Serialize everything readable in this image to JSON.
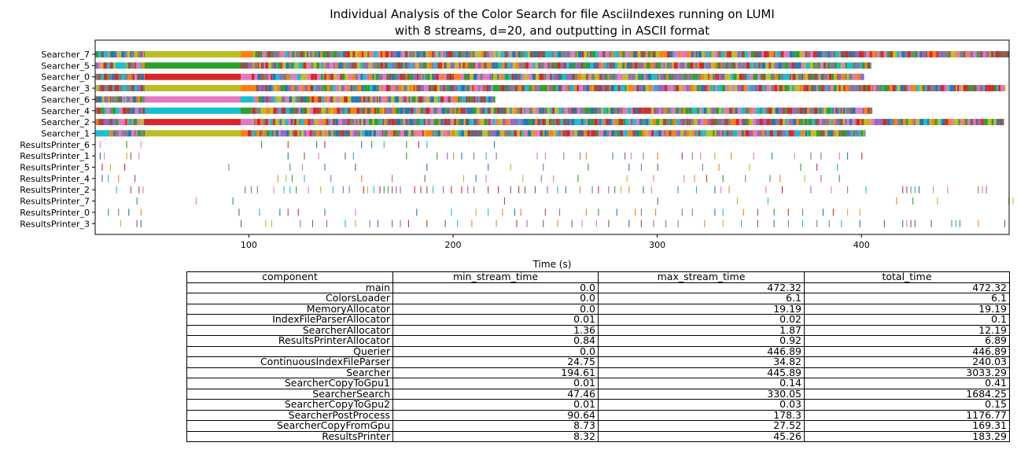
{
  "chart_data": {
    "type": "timeline",
    "title_lines": [
      "Individual Analysis of the Color Search for file AsciiIndexes running on LUMI",
      "with 8 streams, d=20, and outputting in ASCII format"
    ],
    "xlabel": "Time (s)",
    "xlim": [
      24.75,
      472.32
    ],
    "xticks": [
      100,
      200,
      300,
      400
    ],
    "palette": [
      "#1f77b4",
      "#ff7f0e",
      "#2ca02c",
      "#d62728",
      "#9467bd",
      "#8c564b",
      "#e377c2",
      "#7f7f7f",
      "#bcbd22",
      "#17becf"
    ],
    "rows": [
      {
        "name": "Searcher_7",
        "kind": "searcher",
        "start": 25,
        "end": 472.3,
        "long_block": [
          49,
          96,
          8
        ]
      },
      {
        "name": "Searcher_5",
        "kind": "searcher",
        "start": 25,
        "end": 404.8,
        "long_block": [
          49,
          96,
          2
        ]
      },
      {
        "name": "Searcher_0",
        "kind": "searcher",
        "start": 25,
        "end": 401.3,
        "long_block": [
          49,
          96,
          3
        ]
      },
      {
        "name": "Searcher_3",
        "kind": "searcher",
        "start": 25,
        "end": 470.5,
        "long_block": [
          49,
          96,
          8
        ]
      },
      {
        "name": "Searcher_6",
        "kind": "searcher",
        "start": 25,
        "end": 220.7,
        "long_block": [
          49,
          96,
          6
        ]
      },
      {
        "name": "Searcher_4",
        "kind": "searcher",
        "start": 25,
        "end": 405.2,
        "long_block": [
          49,
          96,
          9
        ]
      },
      {
        "name": "Searcher_2",
        "kind": "searcher",
        "start": 25,
        "end": 469.8,
        "long_block": [
          49,
          96,
          3
        ]
      },
      {
        "name": "Searcher_1",
        "kind": "searcher",
        "start": 25,
        "end": 402.0,
        "long_block": [
          49,
          96,
          8
        ]
      },
      {
        "name": "ResultsPrinter_6",
        "kind": "printer",
        "ticks": [
          27,
          40,
          47,
          106,
          119,
          133,
          137,
          155,
          160,
          166,
          177,
          183,
          187,
          220
        ]
      },
      {
        "name": "ResultsPrinter_1",
        "kind": "printer",
        "ticks": [
          27,
          29,
          40,
          42,
          46,
          119,
          127,
          134,
          147,
          151,
          177,
          192,
          197,
          200,
          204,
          210,
          216,
          221,
          241,
          245,
          254,
          262,
          265,
          278,
          284,
          287,
          293,
          300,
          312,
          317,
          321,
          328,
          336,
          347,
          356,
          367,
          375,
          380,
          389,
          393,
          400
        ]
      },
      {
        "name": "ResultsPrinter_5",
        "kind": "printer",
        "ticks": [
          28,
          32,
          39,
          90,
          120,
          126,
          137,
          152,
          187,
          217,
          228,
          244,
          266,
          286,
          292,
          300,
          322,
          330,
          345,
          370,
          378,
          388
        ]
      },
      {
        "name": "ResultsPrinter_4",
        "kind": "printer",
        "ticks": [
          28,
          31,
          36,
          44,
          114,
          118,
          121,
          127,
          140,
          155,
          170,
          186,
          205,
          211,
          216,
          234,
          243,
          249,
          261,
          285,
          298,
          313,
          318,
          324,
          332,
          343,
          355,
          360,
          372,
          380,
          389
        ]
      },
      {
        "name": "ResultsPrinter_2",
        "kind": "printer",
        "ticks": [
          35,
          42,
          46,
          48,
          98,
          101,
          104,
          112,
          117,
          120,
          123,
          129,
          135,
          141,
          146,
          149,
          156,
          158,
          161,
          164,
          166,
          168,
          170,
          172,
          174,
          181,
          184,
          187,
          190,
          195,
          199,
          204,
          207,
          210,
          217,
          222,
          228,
          232,
          235,
          240,
          246,
          251,
          255,
          262,
          268,
          271,
          276,
          279,
          282,
          286,
          293,
          297,
          310,
          319,
          328,
          331,
          335,
          353,
          361,
          375,
          385,
          393,
          402,
          420,
          422,
          424,
          426,
          428,
          435,
          442,
          457,
          459,
          461
        ]
      },
      {
        "name": "ResultsPrinter_7",
        "kind": "printer",
        "ticks": [
          45,
          74,
          92,
          225,
          300,
          339,
          354,
          417,
          425,
          437,
          472,
          474
        ]
      },
      {
        "name": "ResultsPrinter_0",
        "kind": "printer",
        "ticks": [
          31,
          36,
          41,
          47,
          95,
          105,
          115,
          119,
          124,
          137,
          152,
          182,
          199,
          211,
          217,
          224,
          230,
          233,
          245,
          252,
          265,
          271,
          280,
          289,
          292,
          299,
          312,
          317,
          328,
          332,
          342,
          349,
          357,
          364,
          371,
          381,
          386,
          393,
          399
        ]
      },
      {
        "name": "ResultsPrinter_3",
        "kind": "printer",
        "ticks": [
          37,
          45,
          47,
          96,
          108,
          111,
          125,
          131,
          138,
          147,
          152,
          159,
          163,
          170,
          174,
          178,
          187,
          196,
          202,
          209,
          221,
          231,
          236,
          244,
          251,
          258,
          263,
          270,
          276,
          286,
          292,
          298,
          304,
          310,
          323,
          332,
          341,
          349,
          357,
          364,
          371,
          378,
          384,
          390,
          399,
          411,
          420,
          422,
          424,
          426,
          434,
          444,
          446,
          448,
          457,
          470
        ]
      }
    ]
  },
  "table": {
    "columns": [
      "component",
      "min_stream_time",
      "max_stream_time",
      "total_time"
    ],
    "rows": [
      [
        "main",
        "0.0",
        "472.32",
        "472.32"
      ],
      [
        "ColorsLoader",
        "0.0",
        "6.1",
        "6.1"
      ],
      [
        "MemoryAllocator",
        "0.0",
        "19.19",
        "19.19"
      ],
      [
        "IndexFileParserAllocator",
        "0.01",
        "0.02",
        "0.1"
      ],
      [
        "SearcherAllocator",
        "1.36",
        "1.87",
        "12.19"
      ],
      [
        "ResultsPrinterAllocator",
        "0.84",
        "0.92",
        "6.89"
      ],
      [
        "Querier",
        "0.0",
        "446.89",
        "446.89"
      ],
      [
        "ContinuousIndexFileParser",
        "24.75",
        "34.82",
        "240.03"
      ],
      [
        "Searcher",
        "194.61",
        "445.89",
        "3033.29"
      ],
      [
        "SearcherCopyToGpu1",
        "0.01",
        "0.14",
        "0.41"
      ],
      [
        "SearcherSearch",
        "47.46",
        "330.05",
        "1684.25"
      ],
      [
        "SearcherCopyToGpu2",
        "0.01",
        "0.03",
        "0.15"
      ],
      [
        "SearcherPostProcess",
        "90.64",
        "178.3",
        "1176.77"
      ],
      [
        "SearcherCopyFromGpu",
        "8.73",
        "27.52",
        "169.31"
      ],
      [
        "ResultsPrinter",
        "8.32",
        "45.26",
        "183.29"
      ]
    ]
  }
}
